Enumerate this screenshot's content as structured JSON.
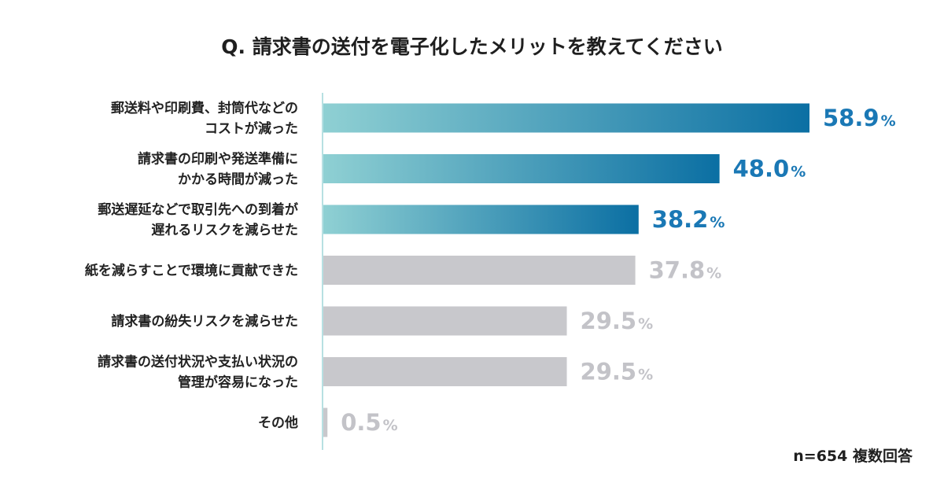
{
  "chart_data": {
    "type": "bar",
    "orientation": "horizontal",
    "title": "Q. 請求書の送付を電子化したメリットを教えてください",
    "categories": [
      [
        "郵送料や印刷費、封筒代などの",
        "コストが減った"
      ],
      [
        "請求書の印刷や発送準備に",
        "かかる時間が減った"
      ],
      [
        "郵送遅延などで取引先への到着が",
        "遅れるリスクを減らせた"
      ],
      [
        "紙を減らすことで環境に貢献できた"
      ],
      [
        "請求書の紛失リスクを減らせた"
      ],
      [
        "請求書の送付状況や支払い状況の",
        "管理が容易になった"
      ],
      [
        "その他"
      ]
    ],
    "values": [
      58.9,
      48.0,
      38.2,
      37.8,
      29.5,
      29.5,
      0.5
    ],
    "value_labels": [
      "58.9",
      "48.0",
      "38.2",
      "37.8",
      "29.5",
      "29.5",
      "0.5"
    ],
    "unit": "%",
    "highlighted": [
      true,
      true,
      true,
      false,
      false,
      false,
      false
    ],
    "xlim": [
      0,
      58.9
    ],
    "grid": false,
    "note": "n=654 複数回答"
  },
  "colors": {
    "gradient_start": "#8fd0d3",
    "gradient_end": "#0b6fa3",
    "highlight_text": "#1a78b5",
    "muted_bar": "#c8c8cc",
    "muted_text": "#c3c3c8",
    "axis_line": "#9fd6d8"
  }
}
